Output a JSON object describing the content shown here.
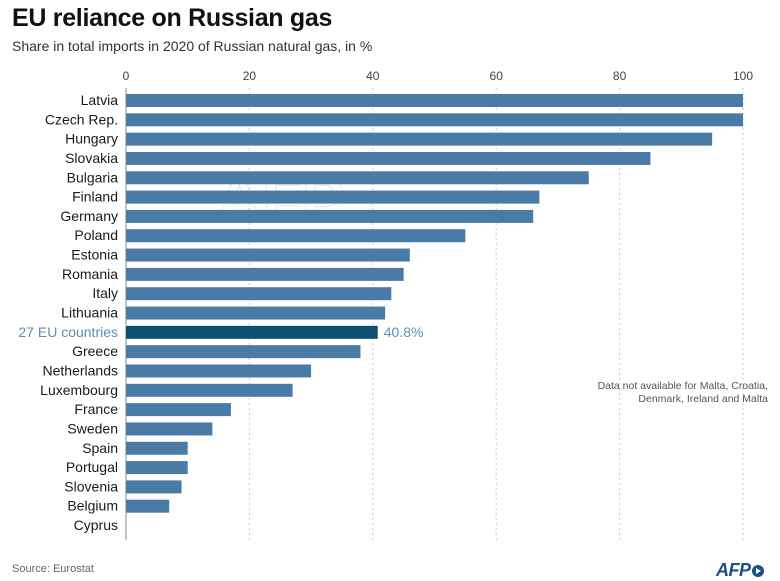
{
  "chart_data": {
    "type": "bar",
    "orientation": "horizontal",
    "title": "EU reliance on Russian gas",
    "subtitle": "Share in total imports in 2020 of Russian natural gas, in %",
    "categories": [
      "Latvia",
      "Czech Rep.",
      "Hungary",
      "Slovakia",
      "Bulgaria",
      "Finland",
      "Germany",
      "Poland",
      "Estonia",
      "Romania",
      "Italy",
      "Lithuania",
      "27 EU countries",
      "Greece",
      "Netherlands",
      "Luxembourg",
      "France",
      "Sweden",
      "Spain",
      "Portugal",
      "Slovenia",
      "Belgium",
      "Cyprus"
    ],
    "values": [
      100,
      100,
      95,
      85,
      75,
      67,
      66,
      55,
      46,
      45,
      43,
      42,
      40.8,
      38,
      30,
      27,
      17,
      14,
      10,
      10,
      9,
      7,
      0
    ],
    "highlight": {
      "category": "27 EU countries",
      "label": "40.8%",
      "color": "#0d4f70"
    },
    "bar_color": "#4a7ba6",
    "xlim": [
      0,
      100
    ],
    "xticks": [
      "0",
      "20",
      "40",
      "60",
      "80",
      "100"
    ],
    "xtick_values": [
      0,
      20,
      40,
      60,
      80,
      100
    ],
    "grid": true,
    "annotation": "Data not available for Malta, Croatia, Denmark, Ireland and Malta"
  },
  "source": "Source: Eurostat",
  "logo": {
    "text": "AFP",
    "color": "#1e4f86"
  },
  "watermark": "AFP"
}
